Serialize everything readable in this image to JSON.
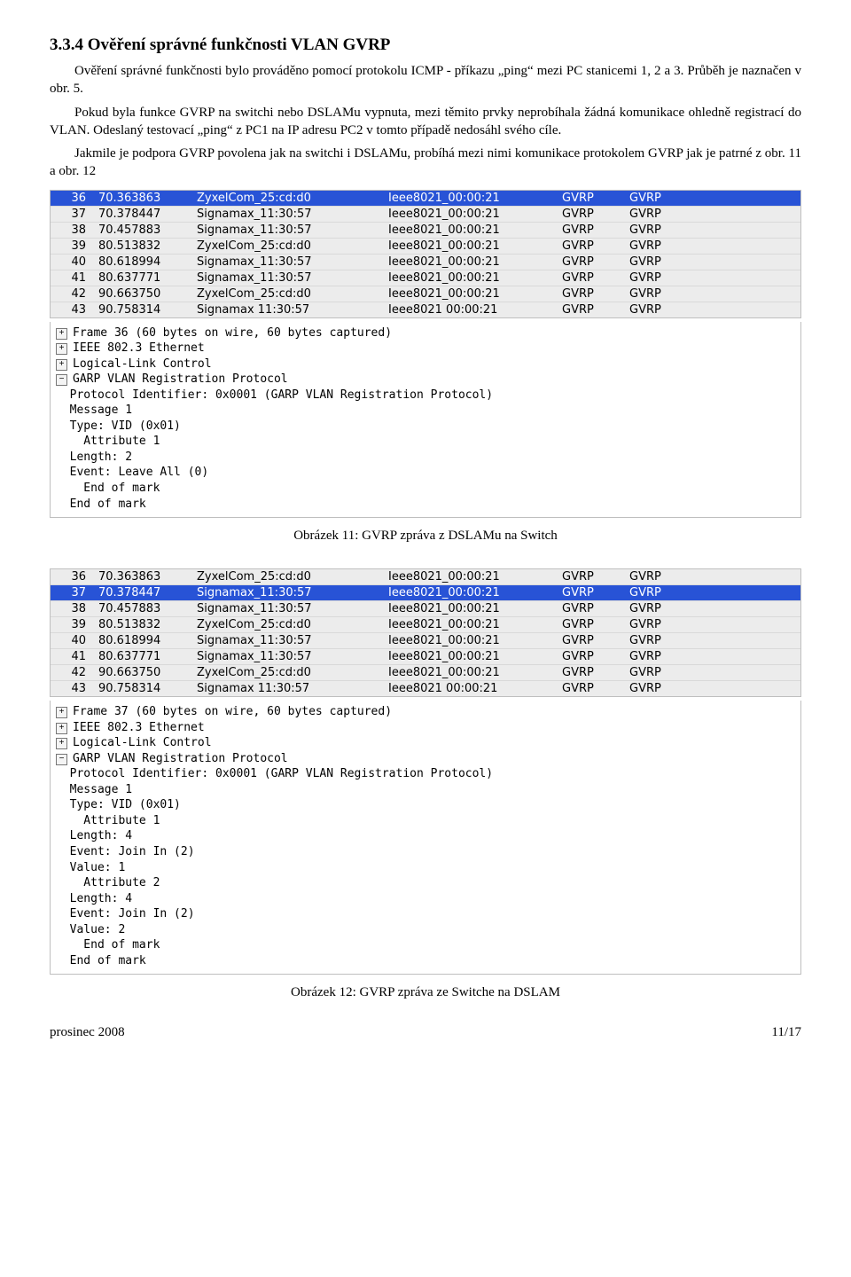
{
  "heading": "3.3.4   Ověření správné funkčnosti VLAN GVRP",
  "para1": "Ověření správné funkčnosti bylo prováděno pomocí protokolu ICMP - příkazu „ping“ mezi PC stanicemi 1, 2 a 3. Průběh je naznačen v obr. 5.",
  "para2": "Pokud byla funkce GVRP na switchi nebo DSLAMu vypnuta, mezi těmito prvky neprobíhala žádná komunikace ohledně registrací do VLAN. Odeslaný testovací „ping“ z PC1 na IP adresu PC2 v tomto případě nedosáhl svého cíle.",
  "para3": "Jakmile je podpora GVRP povolena jak na switchi i DSLAMu, probíhá mezi nimi komunikace protokolem GVRP jak je patrné z obr. 11 a obr. 12",
  "caption1": "Obrázek 11: GVRP zpráva z DSLAMu na Switch",
  "caption2": "Obrázek 12: GVRP zpráva ze Switche na DSLAM",
  "footer_left": "prosinec 2008",
  "footer_right": "11/17",
  "packets": [
    {
      "no": "36",
      "time": "70.363863",
      "src": "ZyxelCom_25:cd:d0",
      "dst": "Ieee8021_00:00:21",
      "proto": "GVRP",
      "info": "GVRP"
    },
    {
      "no": "37",
      "time": "70.378447",
      "src": "Signamax_11:30:57",
      "dst": "Ieee8021_00:00:21",
      "proto": "GVRP",
      "info": "GVRP"
    },
    {
      "no": "38",
      "time": "70.457883",
      "src": "Signamax_11:30:57",
      "dst": "Ieee8021_00:00:21",
      "proto": "GVRP",
      "info": "GVRP"
    },
    {
      "no": "39",
      "time": "80.513832",
      "src": "ZyxelCom_25:cd:d0",
      "dst": "Ieee8021_00:00:21",
      "proto": "GVRP",
      "info": "GVRP"
    },
    {
      "no": "40",
      "time": "80.618994",
      "src": "Signamax_11:30:57",
      "dst": "Ieee8021_00:00:21",
      "proto": "GVRP",
      "info": "GVRP"
    },
    {
      "no": "41",
      "time": "80.637771",
      "src": "Signamax_11:30:57",
      "dst": "Ieee8021_00:00:21",
      "proto": "GVRP",
      "info": "GVRP"
    },
    {
      "no": "42",
      "time": "90.663750",
      "src": "ZyxelCom_25:cd:d0",
      "dst": "Ieee8021_00:00:21",
      "proto": "GVRP",
      "info": "GVRP"
    },
    {
      "no": "43",
      "time": "90.758314",
      "src": "Signamax 11:30:57",
      "dst": "Ieee8021 00:00:21",
      "proto": "GVRP",
      "info": "GVRP"
    }
  ],
  "cap1": {
    "selected_index": 0,
    "frame_line": "Frame 36 (60 bytes on wire, 60 bytes captured)",
    "detail_lines": [
      "  Protocol Identifier: 0x0001 (GARP VLAN Registration Protocol)",
      "  Message 1",
      "  Type: VID (0x01)",
      "    Attribute 1",
      "  Length: 2",
      "  Event: Leave All (0)",
      "    End of mark",
      "  End of mark"
    ]
  },
  "cap2": {
    "selected_index": 1,
    "frame_line": "Frame 37 (60 bytes on wire, 60 bytes captured)",
    "detail_lines": [
      "  Protocol Identifier: 0x0001 (GARP VLAN Registration Protocol)",
      "  Message 1",
      "  Type: VID (0x01)",
      "    Attribute 1",
      "  Length: 4",
      "  Event: Join In (2)",
      "  Value: 1",
      "    Attribute 2",
      "  Length: 4",
      "  Event: Join In (2)",
      "  Value: 2",
      "    End of mark",
      "  End of mark"
    ]
  },
  "ieee_line": "IEEE 802.3 Ethernet",
  "llc_line": "Logical-Link Control",
  "garp_line": "GARP VLAN Registration Protocol"
}
